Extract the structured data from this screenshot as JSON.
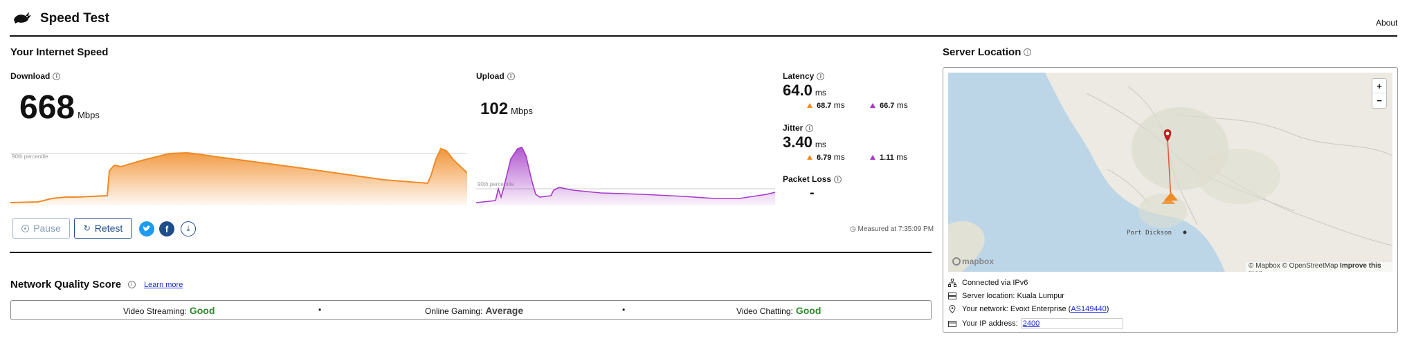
{
  "header": {
    "title": "Speed Test",
    "about": "About"
  },
  "speed": {
    "section_title": "Your Internet Speed",
    "download": {
      "label": "Download",
      "value": "668",
      "unit": "Mbps",
      "percentile": "90th percentile"
    },
    "upload": {
      "label": "Upload",
      "value": "102",
      "unit": "Mbps",
      "percentile": "90th percentile"
    },
    "latency": {
      "label": "Latency",
      "value": "64.0",
      "unit": "ms",
      "down_loaded": "68.7",
      "down_unit": "ms",
      "up_loaded": "66.7",
      "up_unit": "ms"
    },
    "jitter": {
      "label": "Jitter",
      "value": "3.40",
      "unit": "ms",
      "down_loaded": "6.79",
      "down_unit": "ms",
      "up_loaded": "1.11",
      "up_unit": "ms"
    },
    "packet_loss": {
      "label": "Packet Loss",
      "value": "-"
    },
    "measured_at": "Measured at 7:35:09 PM",
    "buttons": {
      "pause": "Pause",
      "retest": "Retest"
    }
  },
  "quality": {
    "title": "Network Quality Score",
    "learn_more": "Learn more",
    "items": [
      {
        "label": "Video Streaming:",
        "value": "Good"
      },
      {
        "label": "Online Gaming:",
        "value": "Average"
      },
      {
        "label": "Video Chatting:",
        "value": "Good"
      }
    ],
    "separator": "•"
  },
  "server": {
    "title": "Server Location",
    "map_place": "Port Dickson",
    "attribution_mapbox": "© Mapbox",
    "attribution_osm": "© OpenStreetMap",
    "improve": "Improve this map",
    "logo": "mapbox",
    "zoom_in": "+",
    "zoom_out": "−",
    "connected": "Connected via IPv6",
    "location": "Server location: Kuala Lumpur",
    "network_prefix": "Your network: Evoxt Enterprise (",
    "network_asn": "AS149440",
    "network_suffix": ")",
    "ip_prefix": "Your IP address:",
    "ip_value": "2400"
  },
  "colors": {
    "download": "#f08a24",
    "upload": "#a53ac7",
    "good": "#2c8a2c",
    "link": "#1a2bd6"
  }
}
